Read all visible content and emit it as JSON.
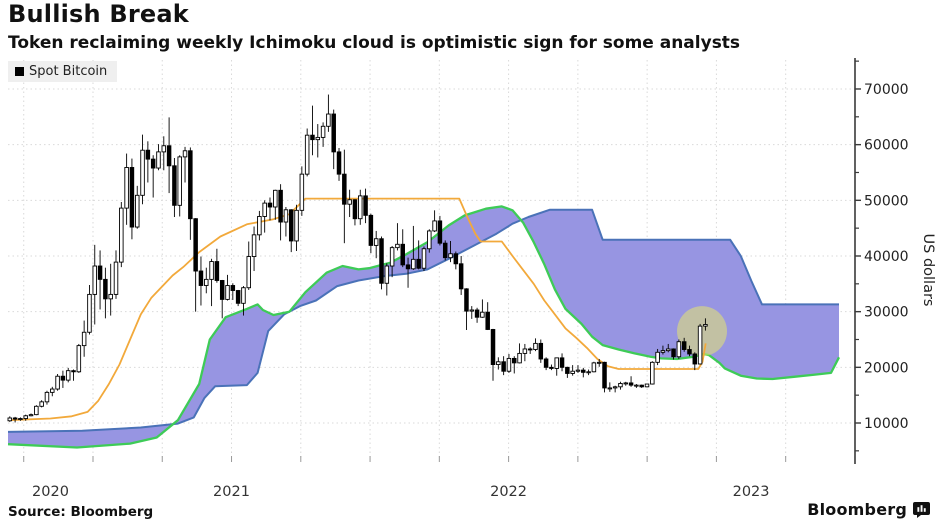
{
  "header": {
    "title": "Bullish Break",
    "subtitle": "Token reclaiming weekly Ichimoku cloud is optimistic sign for some analysts"
  },
  "legend": {
    "label": "Spot Bitcoin",
    "swatch": "#000000"
  },
  "source": {
    "label": "Source: Bloomberg"
  },
  "branding": {
    "wordmark": "Bloomberg"
  },
  "chart_data": {
    "type": "candlestick",
    "title": "Bullish Break",
    "subtitle": "Token reclaiming weekly Ichimoku cloud is optimistic sign for some analysts",
    "legend_entries": [
      "Spot Bitcoin"
    ],
    "ylabel": "US dollars",
    "units": "USD, values stored in thousands",
    "ylim_k": [
      3.3,
      75.2
    ],
    "y_ticks_k": [
      10,
      20,
      30,
      40,
      50,
      60,
      70
    ],
    "y_tick_labels": [
      "10000",
      "20000",
      "30000",
      "40000",
      "50000",
      "60000",
      "70000"
    ],
    "y_minor_ticks_k": [
      5,
      15,
      25,
      35,
      45,
      55,
      65,
      75
    ],
    "x_tick_labels": [
      "2020",
      "2021",
      "2022",
      "2023"
    ],
    "x_axis": {
      "weeks_total": 160,
      "jan_2021_week": 16,
      "weeks_per_year": 52.18,
      "quarter_tick_start_week": 2.96,
      "quarter_step_weeks": 13.045
    },
    "grid": {
      "horizontal": true,
      "vertical": true,
      "style": "dotted"
    },
    "colors": {
      "cloud_fill": "#9795e2",
      "senkou_a_green": "#3ecb57",
      "senkou_b_blue": "#4a72b8",
      "kijun_orange": "#f2a93b",
      "candle_up": "#ffffff",
      "candle_down": "#000000",
      "candle_stroke": "#000000",
      "highlight": "#e9e96a",
      "axis": "#3a3a3a",
      "gridline": "#d9d9d9",
      "tick_label": "#222222"
    },
    "candles_weekly_ohlc_k": [
      [
        10.4,
        11.2,
        10.2,
        10.9
      ],
      [
        10.9,
        11.1,
        10.1,
        10.7
      ],
      [
        10.7,
        11,
        10.4,
        10.8
      ],
      [
        10.8,
        11.5,
        10.4,
        11.3
      ],
      [
        11.3,
        11.7,
        11.2,
        11.5
      ],
      [
        11.5,
        13.2,
        11.4,
        13
      ],
      [
        13,
        14.1,
        12.8,
        13.8
      ],
      [
        13.8,
        15.8,
        13.3,
        15.5
      ],
      [
        15.5,
        16.5,
        14.8,
        16.1
      ],
      [
        16.1,
        18.8,
        15.8,
        18.4
      ],
      [
        18.4,
        19.4,
        16.3,
        17.7
      ],
      [
        17.7,
        19.9,
        17.3,
        19.4
      ],
      [
        19.4,
        19.6,
        17.6,
        19.2
      ],
      [
        19.2,
        24.2,
        19,
        23.9
      ],
      [
        23.9,
        28.4,
        21.9,
        26.3
      ],
      [
        26.3,
        34.8,
        25.9,
        33.1
      ],
      [
        33.1,
        42,
        27.7,
        38.2
      ],
      [
        38.2,
        41,
        30.4,
        35.8
      ],
      [
        35.8,
        37.9,
        28.8,
        32.3
      ],
      [
        32.3,
        38.6,
        29.3,
        33.1
      ],
      [
        33.1,
        41,
        32.3,
        38.9
      ],
      [
        38.9,
        49.7,
        38,
        48.6
      ],
      [
        48.6,
        58.4,
        45.6,
        55.9
      ],
      [
        55.9,
        57.5,
        43,
        45.2
      ],
      [
        45.2,
        52.6,
        44.9,
        50.9
      ],
      [
        50.9,
        61.8,
        49.3,
        59
      ],
      [
        59,
        60.6,
        53.2,
        57.4
      ],
      [
        57.4,
        58.1,
        50.5,
        55.8
      ],
      [
        55.8,
        60.1,
        55.4,
        58.7
      ],
      [
        58.7,
        61.5,
        55.4,
        59.8
      ],
      [
        59.8,
        64.9,
        51.3,
        56.2
      ],
      [
        56.2,
        57.6,
        47,
        49.1
      ],
      [
        49.1,
        58.1,
        47.1,
        57.8
      ],
      [
        57.8,
        59.6,
        53.2,
        58.9
      ],
      [
        58.9,
        59.5,
        42.9,
        46.7
      ],
      [
        46.7,
        46.8,
        30,
        37.3
      ],
      [
        37.3,
        39.9,
        31.1,
        34.7
      ],
      [
        34.7,
        37.9,
        33.3,
        35.8
      ],
      [
        35.8,
        39.5,
        31,
        39
      ],
      [
        39,
        41.3,
        35.2,
        35.6
      ],
      [
        35.6,
        35.7,
        28.8,
        32.2
      ],
      [
        32.2,
        36.6,
        32,
        34.7
      ],
      [
        34.7,
        35.1,
        32.1,
        33.8
      ],
      [
        33.8,
        33.9,
        31,
        31.5
      ],
      [
        31.5,
        34.6,
        29.3,
        34.3
      ],
      [
        34.3,
        42.6,
        33.9,
        39.9
      ],
      [
        39.9,
        45.3,
        37.3,
        43.8
      ],
      [
        43.8,
        48.1,
        42.8,
        47.1
      ],
      [
        47.1,
        50,
        44.2,
        49.5
      ],
      [
        49.5,
        50.5,
        46.4,
        48.8
      ],
      [
        48.8,
        51.9,
        46.5,
        51.8
      ],
      [
        51.8,
        52.9,
        42.8,
        46.1
      ],
      [
        46.1,
        48.8,
        43.5,
        48.3
      ],
      [
        48.3,
        48.4,
        40.7,
        42.7
      ],
      [
        42.7,
        49.2,
        40.9,
        48.2
      ],
      [
        48.2,
        56.1,
        47.2,
        54.7
      ],
      [
        54.7,
        62.9,
        54.3,
        61.7
      ],
      [
        61.7,
        67,
        58.1,
        60.9
      ],
      [
        60.9,
        63.7,
        57.7,
        61.3
      ],
      [
        61.3,
        64,
        59.6,
        63.3
      ],
      [
        63.3,
        69,
        62.3,
        65.5
      ],
      [
        65.5,
        66.3,
        55.6,
        58.7
      ],
      [
        58.7,
        59.4,
        53.5,
        54.7
      ],
      [
        54.7,
        59.1,
        42.3,
        49.3
      ],
      [
        49.3,
        51.9,
        47,
        50.1
      ],
      [
        50.1,
        50.2,
        45.5,
        46.7
      ],
      [
        46.7,
        51.9,
        45.6,
        50.8
      ],
      [
        50.8,
        52.1,
        45.9,
        47.3
      ],
      [
        47.3,
        47.6,
        40.5,
        41.9
      ],
      [
        41.9,
        44.5,
        39.6,
        43.1
      ],
      [
        43.1,
        43.5,
        34,
        35.1
      ],
      [
        35.1,
        38.7,
        32.9,
        38.2
      ],
      [
        38.2,
        41.8,
        36.2,
        41.5
      ],
      [
        41.5,
        45.9,
        41,
        42.1
      ],
      [
        42.1,
        44.8,
        38,
        38.4
      ],
      [
        38.4,
        39.7,
        34.3,
        37.7
      ],
      [
        37.7,
        45.4,
        37.5,
        39.4
      ],
      [
        39.4,
        42.8,
        37.6,
        37.8
      ],
      [
        37.8,
        41.7,
        37.3,
        41.3
      ],
      [
        41.3,
        44.8,
        40.6,
        44.5
      ],
      [
        44.5,
        48.2,
        44.3,
        46.3
      ],
      [
        46.3,
        47.2,
        41.9,
        42.3
      ],
      [
        42.3,
        42.8,
        39.2,
        39.7
      ],
      [
        39.7,
        42.7,
        38.9,
        40.4
      ],
      [
        40.4,
        40.8,
        37.6,
        38.6
      ],
      [
        38.6,
        40,
        33,
        34.1
      ],
      [
        34.1,
        34.2,
        26.7,
        30.1
      ],
      [
        30.1,
        31,
        28.7,
        30.3
      ],
      [
        30.3,
        30.7,
        28,
        29
      ],
      [
        29,
        32.2,
        28.9,
        29.9
      ],
      [
        29.9,
        31.7,
        26.7,
        26.8
      ],
      [
        26.8,
        26.9,
        17.6,
        20.5
      ],
      [
        20.5,
        21.8,
        19.6,
        21
      ],
      [
        21,
        22,
        18.6,
        19.3
      ],
      [
        19.3,
        22.4,
        19,
        21.6
      ],
      [
        21.6,
        22,
        18.9,
        20.8
      ],
      [
        20.8,
        24.3,
        20.7,
        22.5
      ],
      [
        22.5,
        24.2,
        21.1,
        23.3
      ],
      [
        23.3,
        23.6,
        22.4,
        23.2
      ],
      [
        23.2,
        25.2,
        22.9,
        24.3
      ],
      [
        24.3,
        25,
        20.8,
        21.5
      ],
      [
        21.5,
        21.8,
        19.5,
        20
      ],
      [
        20,
        20.5,
        19.5,
        19.8
      ],
      [
        19.8,
        21.7,
        18.5,
        21.7
      ],
      [
        21.7,
        22.5,
        19.3,
        20
      ],
      [
        20,
        20.1,
        18.1,
        18.9
      ],
      [
        18.9,
        20.4,
        18.5,
        19.3
      ],
      [
        19.3,
        20.4,
        19,
        19.5
      ],
      [
        19.5,
        19.9,
        18.2,
        19.1
      ],
      [
        19.1,
        19.6,
        18.6,
        19.2
      ],
      [
        19.2,
        21,
        19.1,
        20.8
      ],
      [
        20.8,
        21.5,
        20.1,
        20.9
      ],
      [
        20.9,
        21,
        15.5,
        16.3
      ],
      [
        16.3,
        17.3,
        15.6,
        16.3
      ],
      [
        16.3,
        16.7,
        15.5,
        16.5
      ],
      [
        16.5,
        17.4,
        16,
        17.1
      ],
      [
        17.1,
        17.4,
        16.7,
        17.2
      ],
      [
        17.2,
        18.4,
        16.5,
        16.8
      ],
      [
        16.8,
        17,
        16.3,
        16.8
      ],
      [
        16.8,
        16.9,
        16.3,
        16.5
      ],
      [
        16.5,
        17,
        16.4,
        17
      ],
      [
        17,
        21.1,
        16.9,
        20.9
      ],
      [
        20.9,
        23.3,
        20.4,
        22.7
      ],
      [
        22.7,
        23.9,
        22.3,
        23
      ],
      [
        23,
        24.2,
        22.7,
        23.3
      ],
      [
        23.3,
        23.4,
        21.4,
        21.9
      ],
      [
        21.9,
        25,
        21.5,
        24.6
      ],
      [
        24.6,
        25.3,
        22.8,
        23.2
      ],
      [
        23.2,
        23.9,
        22,
        22.4
      ],
      [
        22.4,
        22.7,
        19.5,
        20.6
      ],
      [
        20.6,
        27.8,
        20.5,
        27.4
      ],
      [
        27.4,
        28.8,
        26.6,
        27.7
      ]
    ],
    "ichimoku_senkou_a_week_value_k": [
      [
        0,
        6.2
      ],
      [
        13,
        5.6
      ],
      [
        23,
        6.3
      ],
      [
        28,
        7.4
      ],
      [
        32,
        10.5
      ],
      [
        36,
        17
      ],
      [
        38,
        25
      ],
      [
        41,
        29
      ],
      [
        45,
        30.5
      ],
      [
        47,
        31.3
      ],
      [
        48,
        30.3
      ],
      [
        50,
        29.4
      ],
      [
        53,
        30
      ],
      [
        56,
        33.5
      ],
      [
        60,
        37
      ],
      [
        63,
        38.2
      ],
      [
        66,
        37.6
      ],
      [
        68,
        37.8
      ],
      [
        72,
        38.8
      ],
      [
        75,
        40.3
      ],
      [
        79,
        42.5
      ],
      [
        83,
        45.5
      ],
      [
        86,
        47.3
      ],
      [
        90,
        48.5
      ],
      [
        93,
        48.9
      ],
      [
        95,
        48.2
      ],
      [
        97,
        46
      ],
      [
        99,
        42.5
      ],
      [
        101,
        38.5
      ],
      [
        103,
        34
      ],
      [
        105,
        30.5
      ],
      [
        108,
        27.8
      ],
      [
        110,
        25.5
      ],
      [
        112,
        24
      ],
      [
        115,
        23.2
      ],
      [
        118,
        22.5
      ],
      [
        121,
        21.9
      ],
      [
        123,
        21.6
      ],
      [
        126,
        21.5
      ],
      [
        129,
        21.9
      ],
      [
        131,
        22.4
      ],
      [
        132,
        22.2
      ],
      [
        134,
        20.8
      ],
      [
        135,
        19.8
      ],
      [
        138,
        18.5
      ],
      [
        141,
        18
      ],
      [
        144,
        17.9
      ],
      [
        148,
        18.3
      ],
      [
        152,
        18.7
      ],
      [
        155,
        19
      ],
      [
        156.5,
        21.8
      ]
    ],
    "ichimoku_senkou_b_week_value_k": [
      [
        0,
        8.4
      ],
      [
        14,
        8.6
      ],
      [
        25,
        9.2
      ],
      [
        32,
        9.9
      ],
      [
        35,
        11
      ],
      [
        37,
        14.5
      ],
      [
        39,
        16.6
      ],
      [
        45,
        16.8
      ],
      [
        47,
        19
      ],
      [
        49,
        26.5
      ],
      [
        52,
        29.5
      ],
      [
        55,
        31
      ],
      [
        58,
        32
      ],
      [
        62,
        34.6
      ],
      [
        66,
        35.6
      ],
      [
        71,
        36.4
      ],
      [
        75,
        36.8
      ],
      [
        79,
        37.6
      ],
      [
        83,
        39.5
      ],
      [
        88,
        42
      ],
      [
        92,
        44
      ],
      [
        95,
        45.8
      ],
      [
        98,
        47
      ],
      [
        102,
        48.3
      ],
      [
        110,
        48.3
      ],
      [
        112,
        42.9
      ],
      [
        136,
        42.9
      ],
      [
        138,
        40
      ],
      [
        140,
        35.5
      ],
      [
        142,
        31.3
      ],
      [
        156.5,
        31.3
      ]
    ],
    "kijun_week_value_k": [
      [
        0,
        10.5
      ],
      [
        8,
        10.8
      ],
      [
        12,
        11.2
      ],
      [
        15,
        12
      ],
      [
        17,
        14
      ],
      [
        19,
        17
      ],
      [
        21,
        20.5
      ],
      [
        23,
        25
      ],
      [
        25,
        29.5
      ],
      [
        27,
        32.5
      ],
      [
        29,
        34.5
      ],
      [
        31,
        36.5
      ],
      [
        33,
        38
      ],
      [
        36,
        40.7
      ],
      [
        40,
        43.5
      ],
      [
        45,
        45.7
      ],
      [
        50,
        46.6
      ],
      [
        53,
        47.5
      ],
      [
        56,
        50.3
      ],
      [
        85,
        50.3
      ],
      [
        86.5,
        47
      ],
      [
        88,
        44
      ],
      [
        89,
        42.6
      ],
      [
        93,
        42.6
      ],
      [
        95,
        40
      ],
      [
        97,
        37.5
      ],
      [
        99,
        35
      ],
      [
        101,
        32
      ],
      [
        103,
        29.5
      ],
      [
        105,
        27
      ],
      [
        107,
        25.3
      ],
      [
        109,
        23.5
      ],
      [
        111,
        21.5
      ],
      [
        113,
        20.2
      ],
      [
        115,
        19.7
      ],
      [
        130,
        19.7
      ],
      [
        130.8,
        21
      ],
      [
        131.4,
        24.3
      ]
    ],
    "highlight_circle": {
      "week": 130.7,
      "value_k": 26.5,
      "radius_px": 25,
      "opacity": 0.52
    }
  }
}
